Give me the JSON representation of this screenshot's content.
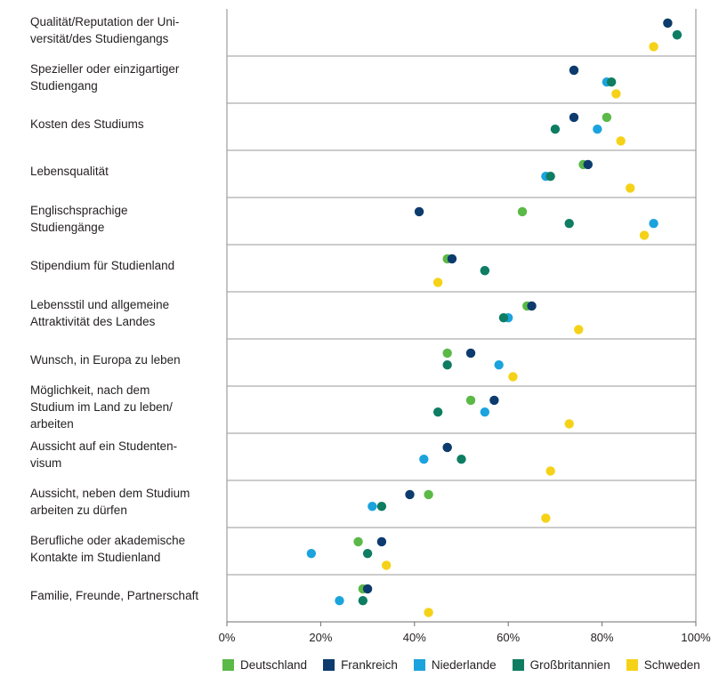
{
  "chart_data": {
    "type": "scatter",
    "orientation": "horizontal-dot-plot",
    "title": "",
    "xlabel": "",
    "ylabel": "",
    "xlim": [
      0,
      100
    ],
    "x_ticks": [
      "0%",
      "20%",
      "40%",
      "60%",
      "80%",
      "100%"
    ],
    "legend_position": "bottom",
    "categories": [
      "Qualität/Reputation der Uni-\nversität/des Studiengangs",
      "Spezieller oder einzigartiger\nStudiengang",
      "Kosten des Studiums",
      "Lebensqualität",
      "Englischsprachige\nStudiengänge",
      "Stipendium für Studienland",
      "Lebensstil und allgemeine\nAttraktivität des Landes",
      "Wunsch, in Europa zu leben",
      "Möglichkeit, nach dem\nStudium im Land zu leben/\narbeiten",
      "Aussicht auf ein Studenten-\nvisum",
      "Aussicht, neben dem Studium\narbeiten zu dürfen",
      "Berufliche oder akademische\nKontakte im Studienland",
      "Familie, Freunde, Partnerschaft"
    ],
    "series": [
      {
        "name": "Deutschland",
        "color": "#5ab947",
        "values": [
          94,
          74,
          81,
          76,
          63,
          47,
          64,
          47,
          52,
          47,
          43,
          28,
          29
        ]
      },
      {
        "name": "Frankreich",
        "color": "#0d3b6e",
        "values": [
          94,
          74,
          74,
          77,
          41,
          48,
          65,
          52,
          57,
          47,
          39,
          33,
          30
        ]
      },
      {
        "name": "Niederlande",
        "color": "#1ba3dd",
        "values": [
          96,
          81,
          79,
          68,
          91,
          55,
          60,
          58,
          55,
          42,
          31,
          18,
          24
        ]
      },
      {
        "name": "Großbritannien",
        "color": "#0e7d62",
        "values": [
          96,
          82,
          70,
          69,
          73,
          55,
          59,
          47,
          45,
          50,
          33,
          30,
          29
        ]
      },
      {
        "name": "Schweden",
        "color": "#f5d218",
        "values": [
          91,
          83,
          84,
          86,
          89,
          45,
          75,
          61,
          73,
          69,
          68,
          34,
          43
        ]
      }
    ]
  }
}
